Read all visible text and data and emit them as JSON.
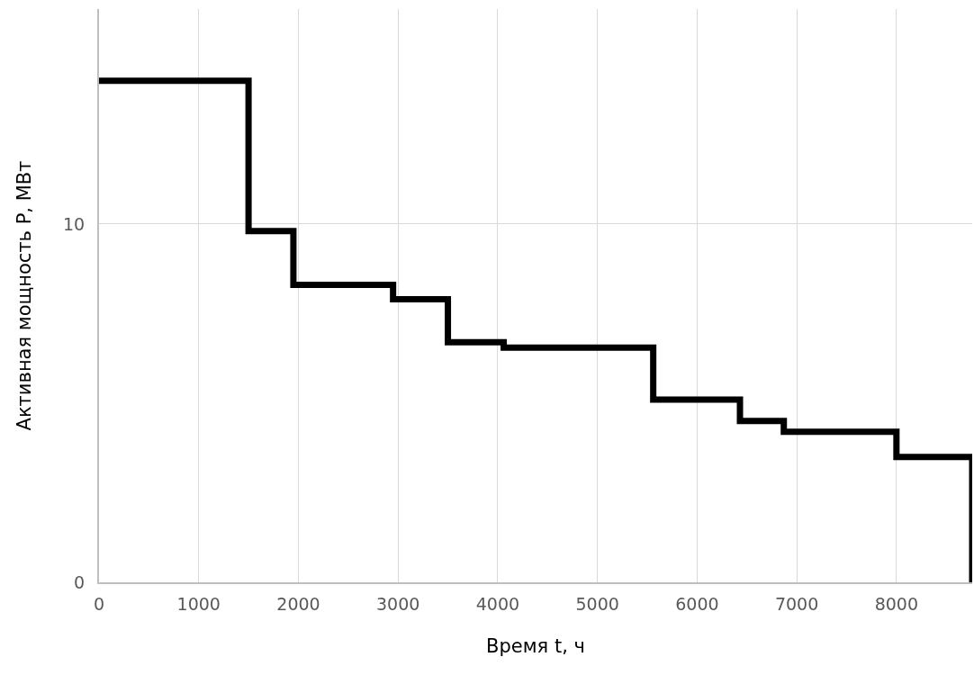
{
  "chart_data": {
    "type": "step",
    "xlabel": "Время t, ч",
    "ylabel": "Активная мощность P, МВт",
    "x": [
      0,
      1500,
      1950,
      2950,
      3500,
      4060,
      5560,
      6430,
      6870,
      8000,
      8760
    ],
    "series": [
      {
        "color": "#000000",
        "values": [
          14,
          9.8,
          8.3,
          7.9,
          6.7,
          6.55,
          5.1,
          4.5,
          4.2,
          3.5,
          0
        ]
      }
    ],
    "xlim": [
      0,
      8760
    ],
    "ylim": [
      0,
      16
    ],
    "xticks": [
      0,
      1000,
      2000,
      3000,
      4000,
      5000,
      6000,
      7000,
      8000
    ],
    "yticks": [
      0,
      10
    ],
    "grid": true,
    "marker": "none",
    "line_style": "solid"
  }
}
